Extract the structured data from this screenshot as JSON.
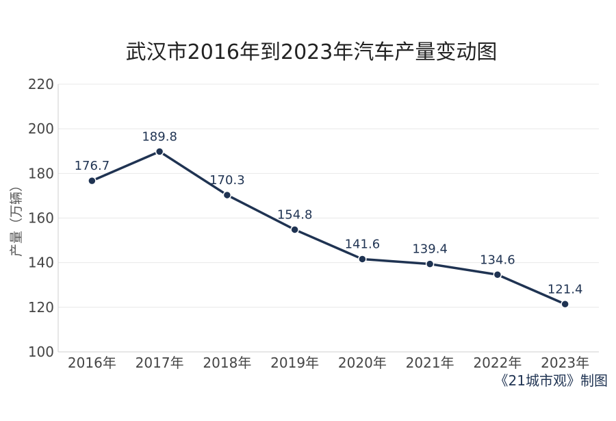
{
  "chart_data": {
    "type": "line",
    "title": "武汉市2016年到2023年汽车产量变动图",
    "xlabel": "",
    "ylabel": "产量（万辆）",
    "categories": [
      "2016年",
      "2017年",
      "2018年",
      "2019年",
      "2020年",
      "2021年",
      "2022年",
      "2023年"
    ],
    "series": [
      {
        "values": [
          176.7,
          189.8,
          170.3,
          154.8,
          141.6,
          139.4,
          134.6,
          121.4
        ],
        "labels": [
          "176.7",
          "189.8",
          "170.3",
          "154.8",
          "141.6",
          "139.4",
          "134.6",
          "121.4"
        ]
      }
    ],
    "ylim": [
      100,
      220
    ],
    "yticks": [
      100,
      120,
      140,
      160,
      180,
      200,
      220
    ],
    "grid": true,
    "legend": "none",
    "color": "#1f3352"
  },
  "credit": "《21城市观》制图"
}
